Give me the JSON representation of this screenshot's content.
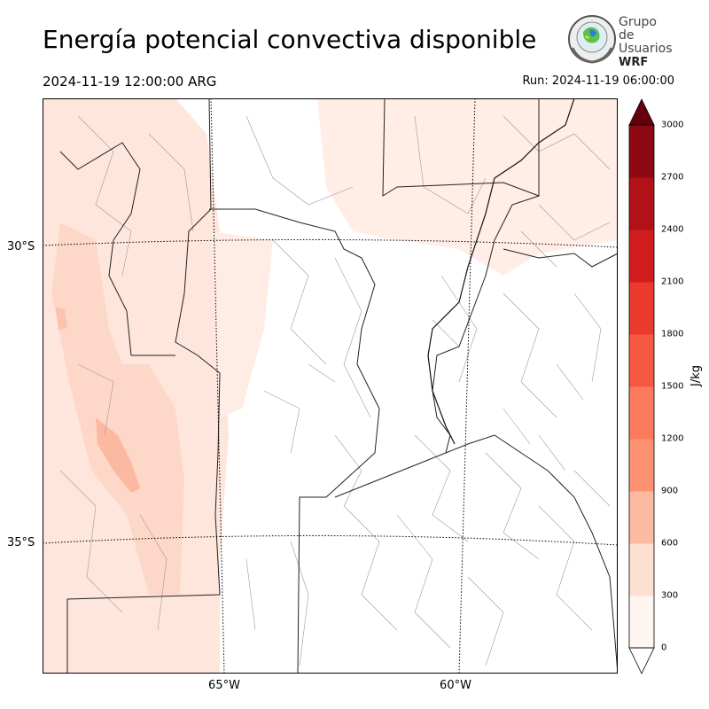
{
  "title": "Energía potencial convectiva disponible",
  "valid_time": "2024-11-19 12:00:00 ARG",
  "run_time": "Run: 2024-11-19 06:00:00",
  "logo": {
    "line1": "Grupo de",
    "line2": "Usuarios",
    "line3": "WRF"
  },
  "map": {
    "lat_labels": [
      {
        "text": "30°S"
      },
      {
        "text": "35°S"
      }
    ],
    "lon_labels": [
      {
        "text": "65°W"
      },
      {
        "text": "60°W"
      }
    ]
  },
  "colorbar": {
    "unit": "J/kg",
    "ticks": [
      "0",
      "300",
      "600",
      "900",
      "1200",
      "1500",
      "1800",
      "2100",
      "2400",
      "2700",
      "3000"
    ],
    "colors": [
      "#fff5f0",
      "#fee0d2",
      "#fcbba1",
      "#fc9272",
      "#fb7b5c",
      "#f55a40",
      "#ea3a2d",
      "#cf1c1f",
      "#b11218",
      "#8d0a14",
      "#67000d"
    ],
    "extend": "both"
  }
}
